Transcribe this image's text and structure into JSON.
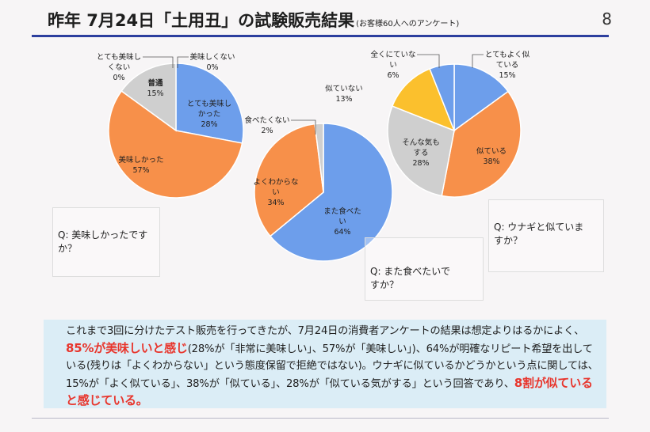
{
  "header": {
    "title": "昨年 7月24日「土用丑」の試験販売結果",
    "subtitle": "(お客様60人へのアンケート)",
    "page_number": "8"
  },
  "colors": {
    "blue": "#6d9eeb",
    "orange": "#f7904a",
    "gray": "#cfcfcf",
    "yellow": "#fbc02d",
    "accent_rule": "#2d3f9e",
    "highlight_red": "#e8352c",
    "summary_bg": "#dbedf6"
  },
  "chart_data": [
    {
      "type": "pie",
      "question": "Q: 美味しかったですか？",
      "slices": [
        {
          "label_lines": [
            "とても美味し",
            "かった"
          ],
          "percent_text": "28%",
          "value": 28,
          "color": "blue"
        },
        {
          "label_lines": [
            "美味しかった"
          ],
          "percent_text": "57%",
          "value": 57,
          "color": "orange"
        },
        {
          "label_lines": [
            "普通"
          ],
          "percent_text": "15%",
          "value": 15,
          "color": "gray"
        },
        {
          "label_lines": [
            "とても美味し",
            "くない"
          ],
          "percent_text": "0%",
          "value": 0,
          "color": "gray"
        },
        {
          "label_lines": [
            "美味しくない"
          ],
          "percent_text": "0%",
          "value": 0,
          "color": "gray"
        }
      ]
    },
    {
      "type": "pie",
      "question": "Q: また食べたいですか？",
      "slices": [
        {
          "label_lines": [
            "また食べた",
            "い"
          ],
          "percent_text": "64%",
          "value": 64,
          "color": "blue"
        },
        {
          "label_lines": [
            "よくわからな",
            "い"
          ],
          "percent_text": "34%",
          "value": 34,
          "color": "orange"
        },
        {
          "label_lines": [
            "食べたくない"
          ],
          "percent_text": "2%",
          "value": 2,
          "color": "gray"
        }
      ]
    },
    {
      "type": "pie",
      "question": "Q: ウナギと似ていますか？",
      "slices": [
        {
          "label_lines": [
            "とてもよく似",
            "ている"
          ],
          "percent_text": "15%",
          "value": 15,
          "color": "blue"
        },
        {
          "label_lines": [
            "似ている"
          ],
          "percent_text": "38%",
          "value": 38,
          "color": "orange"
        },
        {
          "label_lines": [
            "そんな気も",
            "する"
          ],
          "percent_text": "28%",
          "value": 28,
          "color": "gray"
        },
        {
          "label_lines": [
            "似ていない"
          ],
          "percent_text": "13%",
          "value": 13,
          "color": "yellow"
        },
        {
          "label_lines": [
            "全くにていな",
            "い"
          ],
          "percent_text": "6%",
          "value": 6,
          "color": "blue"
        }
      ]
    }
  ],
  "questions": {
    "q1_line1": "Q: 美味しかったです",
    "q1_line2": "か？",
    "q2_line1": "Q: また食べたいで",
    "q2_line2": "すか？",
    "q3_line1": "Q: ウナギと似ていま",
    "q3_line2": "すか？"
  },
  "summary": {
    "part1": "これまで3回に分けたテスト販売を行ってきたが、7月24日の消費者アンケートの結果は想定よりはるかによく、",
    "highlight1": "85%が美味しいと感じ",
    "part2": "(28%が「非常に美味しい」、57%が「美味しい」)、64%が明確なリピート希望を出している(残りは「よくわからない」という態度保留で拒絶ではない)。ウナギに似ているかどうかという点に関しては、15%が「よく似ている」、38%が「似ている」、28%が「似ている気がする」という回答であり、",
    "highlight2": "8割が似ていると感じている。"
  }
}
